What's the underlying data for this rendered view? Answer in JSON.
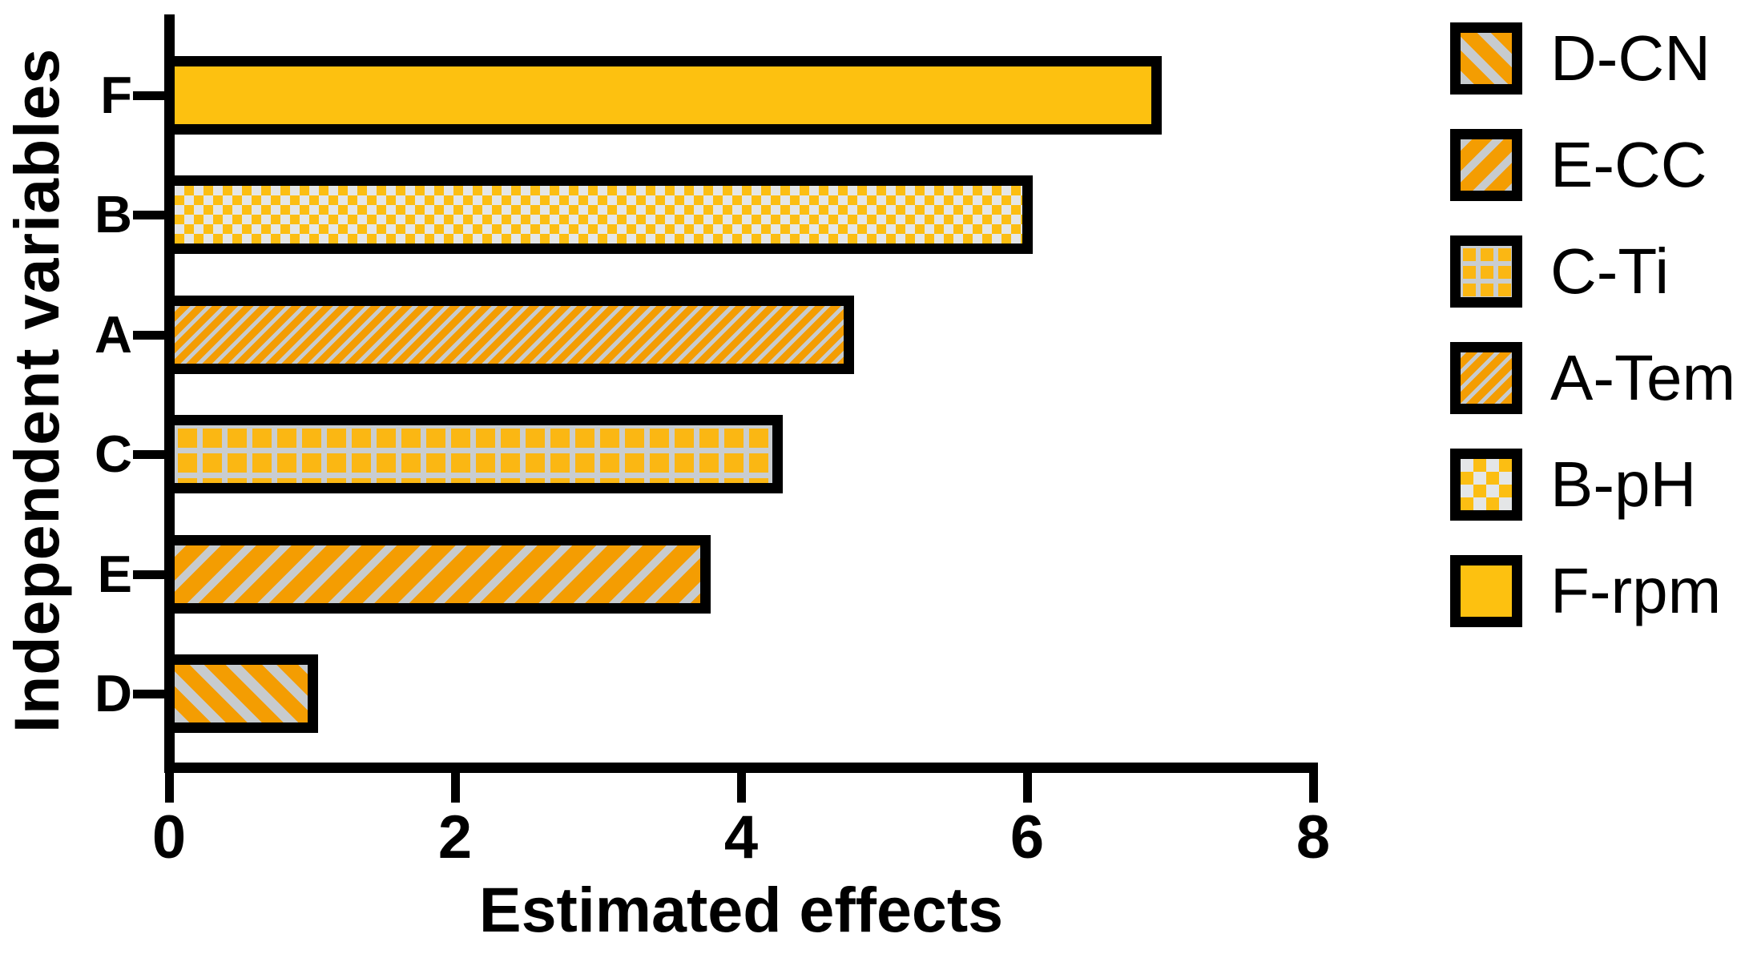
{
  "chart_data": {
    "type": "bar",
    "orientation": "horizontal",
    "xlabel": "Estimated effects",
    "ylabel": "Independent variables",
    "xlim": [
      0,
      8
    ],
    "xticks": [
      "0",
      "2",
      "4",
      "6",
      "8"
    ],
    "grid": false,
    "categories": [
      "F",
      "B",
      "A",
      "C",
      "E",
      "D"
    ],
    "values": [
      6.9,
      6.0,
      4.75,
      4.25,
      3.75,
      1.0
    ],
    "bar_patterns": [
      "solid-yellow",
      "checker",
      "diag-thin",
      "grid",
      "diag-wide",
      "diag-back"
    ],
    "legend": {
      "position": "right",
      "entries": [
        {
          "label": "D-CN",
          "pattern": "diag-back",
          "description": "orange with wide backslash gray stripes"
        },
        {
          "label": "E-CC",
          "pattern": "diag-wide",
          "description": "orange with wide forward-slash gray stripes"
        },
        {
          "label": "C-Ti",
          "pattern": "grid",
          "description": "yellow squares with gray grid lines"
        },
        {
          "label": "A-Tem",
          "pattern": "diag-thin",
          "description": "orange with thin forward-slash gray stripes"
        },
        {
          "label": "B-pH",
          "pattern": "checker",
          "description": "yellow and light-gray checkerboard"
        },
        {
          "label": "F-rpm",
          "pattern": "solid-yellow",
          "description": "solid yellow"
        }
      ]
    },
    "colors": {
      "solid_yellow": "#FDC110",
      "checker_yellow": "#FCBE12",
      "checker_gray": "#E4E6E7",
      "stripe_orange": "#F49D02",
      "stripe_gray": "#C7CBCE",
      "grid_yellow": "#FBB713",
      "grid_gray": "#C9CDD0",
      "outline": "#000000"
    }
  }
}
